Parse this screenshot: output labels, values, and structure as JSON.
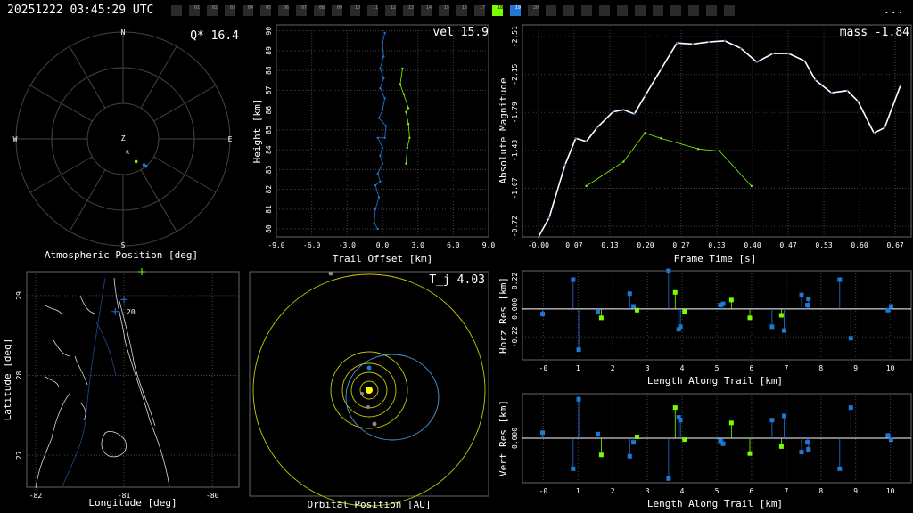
{
  "header": {
    "timestamp": "20251222 03:45:29 UTC",
    "more_label": "..."
  },
  "frames": [
    {
      "label": "",
      "state": "off"
    },
    {
      "label": "01",
      "state": "off"
    },
    {
      "label": "02",
      "state": "off"
    },
    {
      "label": "03",
      "state": "off"
    },
    {
      "label": "04",
      "state": "off"
    },
    {
      "label": "05",
      "state": "off"
    },
    {
      "label": "06",
      "state": "off"
    },
    {
      "label": "07",
      "state": "off"
    },
    {
      "label": "08",
      "state": "off"
    },
    {
      "label": "09",
      "state": "off"
    },
    {
      "label": "10",
      "state": "off"
    },
    {
      "label": "11",
      "state": "off"
    },
    {
      "label": "12",
      "state": "off"
    },
    {
      "label": "13",
      "state": "off"
    },
    {
      "label": "14",
      "state": "off"
    },
    {
      "label": "15",
      "state": "off"
    },
    {
      "label": "16",
      "state": "off"
    },
    {
      "label": "17",
      "state": "off"
    },
    {
      "label": "18",
      "state": "green"
    },
    {
      "label": "19",
      "state": "blue"
    },
    {
      "label": "20",
      "state": "off"
    },
    {
      "label": "",
      "state": "off"
    },
    {
      "label": "",
      "state": "off"
    },
    {
      "label": "",
      "state": "off"
    },
    {
      "label": "",
      "state": "off"
    },
    {
      "label": "",
      "state": "off"
    },
    {
      "label": "",
      "state": "off"
    },
    {
      "label": "",
      "state": "off"
    },
    {
      "label": "",
      "state": "off"
    },
    {
      "label": "",
      "state": "off"
    },
    {
      "label": "",
      "state": "off"
    },
    {
      "label": "",
      "state": "off"
    }
  ],
  "colors": {
    "blue": "#1e78d6",
    "green": "#7cfc00",
    "yellow": "#c8c800",
    "grid": "#444444",
    "white": "#ffffff"
  },
  "panels": {
    "sky": {
      "title": "Atmospheric Position [deg]",
      "value_label": "Q* 16.4",
      "compass": {
        "n": "N",
        "s": "S",
        "e": "E",
        "w": "W",
        "z": "Z",
        "r": "R"
      }
    },
    "height": {
      "xlabel": "Trail Offset [km]",
      "ylabel": "Height [km]",
      "value_label": "vel 15.9"
    },
    "mag": {
      "xlabel": "Frame Time [s]",
      "ylabel": "Absolute Magnitude",
      "value_label": "mass -1.84"
    },
    "map": {
      "xlabel": "Longitude [deg]",
      "ylabel": "Latitude [deg]",
      "marker_label": "20"
    },
    "orbit": {
      "xlabel": "Orbital Position [AU]",
      "value_label": "T_j 4.03"
    },
    "horz": {
      "xlabel": "Length Along Trail [km]",
      "ylabel": "Horz Res [km]"
    },
    "vert": {
      "xlabel": "Length Along Trail [km]",
      "ylabel": "Vert Res [km]"
    }
  },
  "chart_data": [
    {
      "type": "scatter",
      "name": "atmospheric-position",
      "series": [
        {
          "color": "blue",
          "points": [
            [
              40,
              -60
            ],
            [
              39,
              -62
            ]
          ]
        },
        {
          "color": "green",
          "points": [
            [
              30,
              -68
            ]
          ]
        }
      ]
    },
    {
      "type": "line",
      "name": "height-vs-offset",
      "xlim": [
        -9,
        9
      ],
      "ylim": [
        79.6,
        90.3
      ],
      "xticks": [
        "-9.0",
        "-6.0",
        "-3.0",
        "0.0",
        "3.0",
        "6.0",
        "9.0"
      ],
      "yticks": [
        "80",
        "81",
        "82",
        "83",
        "84",
        "85",
        "86",
        "87",
        "88",
        "89",
        "90"
      ],
      "series": [
        {
          "color": "blue",
          "points": [
            [
              0.2,
              89.9
            ],
            [
              0.0,
              89.4
            ],
            [
              0.1,
              88.7
            ],
            [
              -0.2,
              88.1
            ],
            [
              0.1,
              87.6
            ],
            [
              -0.2,
              87.1
            ],
            [
              0.2,
              86.6
            ],
            [
              0.0,
              86.0
            ],
            [
              -0.3,
              85.6
            ],
            [
              0.3,
              85.2
            ],
            [
              0.2,
              84.6
            ],
            [
              -0.4,
              84.6
            ],
            [
              0.0,
              84.1
            ],
            [
              -0.2,
              83.7
            ],
            [
              0.0,
              83.3
            ],
            [
              -0.4,
              82.8
            ],
            [
              -0.2,
              82.4
            ],
            [
              -0.6,
              82.2
            ],
            [
              -0.3,
              81.6
            ],
            [
              -0.6,
              81.0
            ],
            [
              -0.7,
              80.3
            ],
            [
              -0.4,
              80.0
            ]
          ]
        },
        {
          "color": "green",
          "points": [
            [
              1.7,
              88.1
            ],
            [
              1.5,
              87.3
            ],
            [
              1.8,
              86.8
            ],
            [
              2.2,
              86.1
            ],
            [
              2.0,
              85.9
            ],
            [
              2.2,
              85.3
            ],
            [
              2.3,
              84.6
            ],
            [
              2.1,
              84.1
            ],
            [
              2.0,
              83.3
            ]
          ]
        }
      ]
    },
    {
      "type": "line",
      "name": "magnitude-vs-time",
      "xlim": [
        -0.03,
        0.7
      ],
      "ylim": [
        -0.62,
        -2.62
      ],
      "inverted_y": true,
      "xticks": [
        "-0.00",
        "0.07",
        "0.13",
        "0.20",
        "0.27",
        "0.33",
        "0.40",
        "0.47",
        "0.53",
        "0.60",
        "0.67"
      ],
      "yticks": [
        "-0.72",
        "-1.07",
        "-1.43",
        "-1.79",
        "-2.15",
        "-2.51"
      ],
      "series": [
        {
          "color": "white",
          "points": [
            [
              0.0,
              -0.62
            ],
            [
              0.02,
              -0.8
            ],
            [
              0.05,
              -1.3
            ],
            [
              0.07,
              -1.55
            ],
            [
              0.09,
              -1.52
            ],
            [
              0.11,
              -1.65
            ],
            [
              0.14,
              -1.8
            ],
            [
              0.16,
              -1.82
            ],
            [
              0.18,
              -1.78
            ],
            [
              0.2,
              -1.95
            ],
            [
              0.23,
              -2.2
            ],
            [
              0.26,
              -2.45
            ],
            [
              0.29,
              -2.44
            ],
            [
              0.32,
              -2.46
            ],
            [
              0.35,
              -2.47
            ],
            [
              0.38,
              -2.4
            ],
            [
              0.41,
              -2.27
            ],
            [
              0.44,
              -2.35
            ],
            [
              0.47,
              -2.35
            ],
            [
              0.5,
              -2.28
            ],
            [
              0.52,
              -2.1
            ],
            [
              0.55,
              -1.98
            ],
            [
              0.58,
              -2.0
            ],
            [
              0.6,
              -1.9
            ],
            [
              0.63,
              -1.6
            ],
            [
              0.65,
              -1.65
            ],
            [
              0.68,
              -2.05
            ]
          ]
        },
        {
          "color": "green",
          "points": [
            [
              0.09,
              -1.1
            ],
            [
              0.16,
              -1.33
            ],
            [
              0.2,
              -1.6
            ],
            [
              0.23,
              -1.55
            ],
            [
              0.3,
              -1.45
            ],
            [
              0.34,
              -1.43
            ],
            [
              0.4,
              -1.1
            ]
          ]
        }
      ]
    },
    {
      "type": "scatter",
      "name": "ground-map",
      "xlim": [
        -82.1,
        -79.7
      ],
      "ylim": [
        26.6,
        29.3
      ],
      "xticks": [
        "-82",
        "-81",
        "-80"
      ],
      "yticks": [
        "27",
        "28",
        "29"
      ],
      "series": [
        {
          "color": "blue",
          "points": [
            [
              -81.0,
              28.95
            ],
            [
              -81.1,
              28.8
            ]
          ]
        },
        {
          "color": "green",
          "points": [
            [
              -80.8,
              29.3
            ]
          ]
        }
      ]
    },
    {
      "type": "scatter",
      "name": "orbit-view",
      "series": [
        {
          "color": "yellow",
          "points": [
            [
              0,
              0
            ]
          ]
        }
      ]
    },
    {
      "type": "bar",
      "name": "horizontal-residuals",
      "xlim": [
        -0.6,
        10.6
      ],
      "ylim": [
        -0.4,
        0.3
      ],
      "xticks": [
        "-0",
        "1",
        "2",
        "3",
        "4",
        "5",
        "6",
        "7",
        "8",
        "9",
        "10"
      ],
      "yticks": [
        "-0.22",
        "0.000",
        "0.22"
      ],
      "series": [
        {
          "color": "blue",
          "points": [
            [
              -0.02,
              -0.04
            ],
            [
              0.86,
              0.23
            ],
            [
              1.02,
              -0.32
            ],
            [
              1.57,
              -0.02
            ],
            [
              2.49,
              0.12
            ],
            [
              2.6,
              0.02
            ],
            [
              3.61,
              0.3
            ],
            [
              3.9,
              -0.16
            ],
            [
              3.95,
              -0.14
            ],
            [
              5.1,
              0.03
            ],
            [
              5.18,
              0.04
            ],
            [
              6.59,
              -0.14
            ],
            [
              6.94,
              -0.17
            ],
            [
              7.44,
              0.11
            ],
            [
              7.64,
              0.08
            ],
            [
              7.61,
              0.03
            ],
            [
              8.54,
              0.23
            ],
            [
              8.86,
              -0.23
            ],
            [
              9.93,
              -0.01
            ],
            [
              10.02,
              0.02
            ]
          ]
        },
        {
          "color": "green",
          "points": [
            [
              1.67,
              -0.07
            ],
            [
              2.7,
              -0.01
            ],
            [
              3.8,
              0.13
            ],
            [
              4.07,
              -0.02
            ],
            [
              5.42,
              0.07
            ],
            [
              5.95,
              -0.07
            ],
            [
              6.86,
              -0.05
            ]
          ]
        }
      ]
    },
    {
      "type": "bar",
      "name": "vertical-residuals",
      "xlim": [
        -0.6,
        10.6
      ],
      "ylim": [
        -0.32,
        0.32
      ],
      "xticks": [
        "-0",
        "1",
        "2",
        "3",
        "4",
        "5",
        "6",
        "7",
        "8",
        "9",
        "10"
      ],
      "yticks": [
        "0.000"
      ],
      "series": [
        {
          "color": "blue",
          "points": [
            [
              -0.02,
              0.04
            ],
            [
              0.86,
              -0.22
            ],
            [
              1.02,
              0.28
            ],
            [
              1.57,
              0.03
            ],
            [
              2.49,
              -0.13
            ],
            [
              2.6,
              -0.03
            ],
            [
              3.61,
              -0.29
            ],
            [
              3.9,
              0.15
            ],
            [
              3.95,
              0.13
            ],
            [
              5.1,
              -0.02
            ],
            [
              5.18,
              -0.04
            ],
            [
              6.59,
              0.13
            ],
            [
              6.94,
              0.16
            ],
            [
              7.44,
              -0.1
            ],
            [
              7.64,
              -0.08
            ],
            [
              7.61,
              -0.03
            ],
            [
              8.54,
              -0.22
            ],
            [
              8.86,
              0.22
            ],
            [
              9.93,
              0.02
            ],
            [
              10.02,
              -0.01
            ]
          ]
        },
        {
          "color": "green",
          "points": [
            [
              1.67,
              -0.12
            ],
            [
              2.7,
              0.01
            ],
            [
              3.8,
              0.22
            ],
            [
              4.07,
              -0.01
            ],
            [
              5.42,
              0.11
            ],
            [
              5.95,
              -0.11
            ],
            [
              6.86,
              -0.06
            ]
          ]
        }
      ]
    }
  ]
}
